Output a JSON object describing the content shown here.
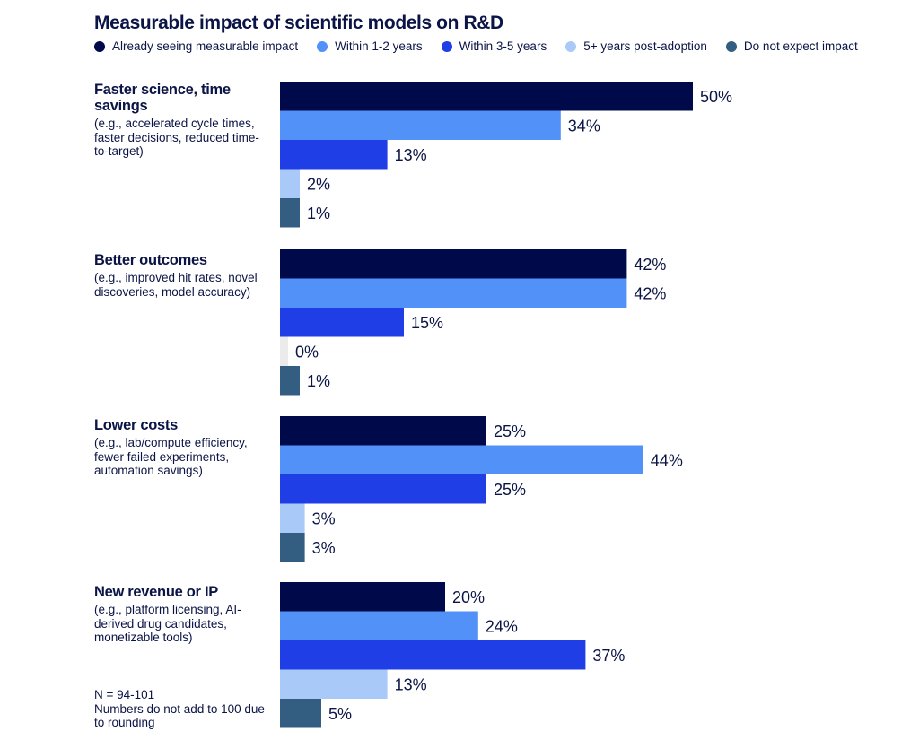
{
  "chart_data": {
    "type": "bar",
    "orientation": "horizontal",
    "title": "Measurable impact of scientific models on R&D",
    "xlabel": "",
    "ylabel": "",
    "xlim": [
      0,
      50
    ],
    "grid": false,
    "legend_position": "top",
    "value_format": "percent",
    "categories": [
      {
        "title": "Faster science, time savings",
        "description": "(e.g., accelerated cycle times, faster decisions, reduced time-to-target)"
      },
      {
        "title": "Better outcomes",
        "description": "(e.g., improved hit rates, novel discoveries, model accuracy)"
      },
      {
        "title": "Lower costs",
        "description": "(e.g., lab/compute efficiency, fewer failed experiments, automation savings)"
      },
      {
        "title": "New revenue or IP",
        "description": "(e.g., platform licensing, AI-derived drug candidates, monetizable tools)"
      }
    ],
    "series": [
      {
        "name": "Already seeing measurable impact",
        "color": "#000a4a",
        "values": [
          50,
          42,
          25,
          20
        ]
      },
      {
        "name": "Within 1-2 years",
        "color": "#5291f7",
        "values": [
          34,
          42,
          44,
          24
        ]
      },
      {
        "name": "Within 3-5 years",
        "color": "#1f3ee6",
        "values": [
          13,
          15,
          25,
          37
        ]
      },
      {
        "name": "5+ years post-adoption",
        "color": "#a9c9f8",
        "values": [
          2,
          0,
          3,
          13
        ]
      },
      {
        "name": "Do not expect impact",
        "color": "#335e82",
        "values": [
          1,
          1,
          3,
          5
        ]
      }
    ],
    "zero_bar_color": "#ebebeb",
    "annotations": [
      "N = 94-101",
      "Numbers do not add to 100 due to rounding"
    ]
  }
}
